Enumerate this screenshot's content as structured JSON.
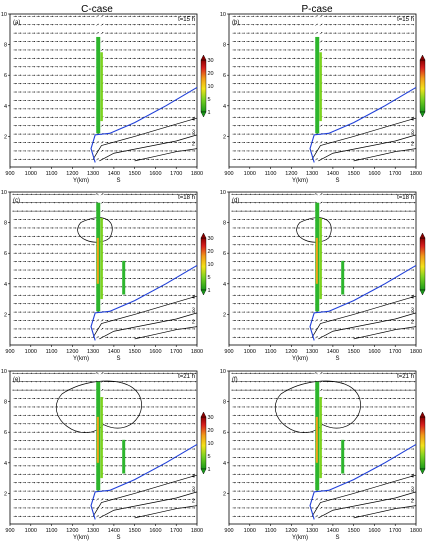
{
  "figure": {
    "columns": [
      {
        "title": "C-case"
      },
      {
        "title": "P-case"
      }
    ]
  },
  "chart_data": [
    {
      "type": "vector-contour",
      "panel_label": "(a)",
      "time_label": "t=15 h",
      "case": "C-case",
      "xlabel": "Y(km)",
      "xlim": [
        900,
        1800
      ],
      "ylim": [
        0,
        10
      ],
      "x_ticks": [
        "900",
        "1000",
        "1100",
        "1200",
        "1300",
        "1400",
        "1500",
        "1600",
        "1700",
        "1800"
      ],
      "y_ticks": [
        "2",
        "4",
        "6",
        "8",
        "10"
      ],
      "colorbar_ticks": [
        "1",
        "5",
        "10",
        "20",
        "30"
      ],
      "contour_labels": [
        "2",
        "3",
        "4",
        "5",
        "6"
      ],
      "annotation": "S"
    },
    {
      "type": "vector-contour",
      "panel_label": "(b)",
      "time_label": "t=15 h",
      "case": "P-case",
      "xlabel": "Y(km)",
      "xlim": [
        900,
        1800
      ],
      "ylim": [
        0,
        10
      ],
      "x_ticks": [
        "900",
        "1000",
        "1100",
        "1200",
        "1300",
        "1400",
        "1500",
        "1600",
        "1700",
        "1800"
      ],
      "y_ticks": [
        "2",
        "4",
        "6",
        "8",
        "10"
      ],
      "colorbar_ticks": [
        "1",
        "5",
        "10",
        "20",
        "30"
      ],
      "contour_labels": [
        "2",
        "3",
        "4",
        "5",
        "6"
      ],
      "annotation": "S"
    },
    {
      "type": "vector-contour",
      "panel_label": "(c)",
      "time_label": "t=18 h",
      "case": "C-case",
      "xlabel": "Y(km)",
      "xlim": [
        900,
        1800
      ],
      "ylim": [
        0,
        10
      ],
      "x_ticks": [
        "900",
        "1000",
        "1100",
        "1200",
        "1300",
        "1400",
        "1500",
        "1600",
        "1700",
        "1800"
      ],
      "y_ticks": [
        "2",
        "4",
        "6",
        "8",
        "10"
      ],
      "colorbar_ticks": [
        "1",
        "5",
        "10",
        "20",
        "30"
      ],
      "contour_labels": [
        "2",
        "3",
        "4",
        "5",
        "6"
      ],
      "annotation": "S"
    },
    {
      "type": "vector-contour",
      "panel_label": "(d)",
      "time_label": "t=18 h",
      "case": "P-case",
      "xlabel": "Y(km)",
      "xlim": [
        900,
        1800
      ],
      "ylim": [
        0,
        10
      ],
      "x_ticks": [
        "900",
        "1000",
        "1100",
        "1200",
        "1300",
        "1400",
        "1500",
        "1600",
        "1700",
        "1800"
      ],
      "y_ticks": [
        "2",
        "4",
        "6",
        "8",
        "10"
      ],
      "colorbar_ticks": [
        "1",
        "5",
        "10",
        "20",
        "30"
      ],
      "contour_labels": [
        "2",
        "3",
        "4",
        "5",
        "6"
      ],
      "annotation": "S"
    },
    {
      "type": "vector-contour",
      "panel_label": "(e)",
      "time_label": "t=21 h",
      "case": "C-case",
      "xlabel": "Y(km)",
      "xlim": [
        900,
        1800
      ],
      "ylim": [
        0,
        10
      ],
      "x_ticks": [
        "900",
        "1000",
        "1100",
        "1200",
        "1300",
        "1400",
        "1500",
        "1600",
        "1700",
        "1800"
      ],
      "y_ticks": [
        "2",
        "4",
        "6",
        "8",
        "10"
      ],
      "colorbar_ticks": [
        "1",
        "5",
        "10",
        "20",
        "30"
      ],
      "contour_labels": [
        "2",
        "3",
        "4",
        "5",
        "6"
      ],
      "annotation": "S"
    },
    {
      "type": "vector-contour",
      "panel_label": "(f)",
      "time_label": "t=21 h",
      "case": "P-case",
      "xlabel": "Y(km)",
      "xlim": [
        900,
        1800
      ],
      "ylim": [
        0,
        10
      ],
      "x_ticks": [
        "900",
        "1000",
        "1100",
        "1200",
        "1300",
        "1400",
        "1500",
        "1600",
        "1700",
        "1800"
      ],
      "y_ticks": [
        "2",
        "4",
        "6",
        "8",
        "10"
      ],
      "colorbar_ticks": [
        "1",
        "5",
        "10",
        "20",
        "30"
      ],
      "contour_labels": [
        "2",
        "3",
        "4",
        "5",
        "6"
      ],
      "annotation": "S"
    }
  ]
}
